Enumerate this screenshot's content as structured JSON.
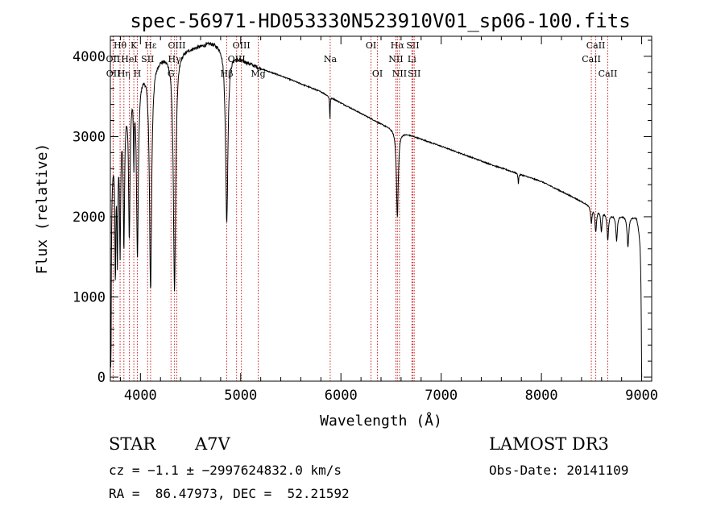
{
  "chart_data": {
    "type": "line",
    "title": "spec-56971-HD053330N523910V01_sp06-100.fits",
    "xlabel": "Wavelength (Å)",
    "ylabel": "Flux (relative)",
    "xlim": [
      3700,
      9100
    ],
    "ylim": [
      -50,
      4250
    ],
    "xticks": [
      4000,
      5000,
      6000,
      7000,
      8000,
      9000
    ],
    "yticks": [
      0,
      1000,
      2000,
      3000,
      4000
    ],
    "grid": false,
    "series": [
      {
        "name": "flux",
        "continuum": [
          [
            3700,
            2500
          ],
          [
            3750,
            3000
          ],
          [
            3800,
            3300
          ],
          [
            3900,
            3650
          ],
          [
            4000,
            3800
          ],
          [
            4100,
            3920
          ],
          [
            4200,
            4000
          ],
          [
            4400,
            4080
          ],
          [
            4600,
            4140
          ],
          [
            4700,
            4180
          ],
          [
            4800,
            4150
          ],
          [
            4900,
            4050
          ],
          [
            5000,
            3970
          ],
          [
            5200,
            3850
          ],
          [
            5400,
            3760
          ],
          [
            5600,
            3660
          ],
          [
            5800,
            3560
          ],
          [
            6000,
            3420
          ],
          [
            6200,
            3290
          ],
          [
            6400,
            3160
          ],
          [
            6600,
            3060
          ],
          [
            6800,
            2970
          ],
          [
            7000,
            2880
          ],
          [
            7500,
            2650
          ],
          [
            8000,
            2440
          ],
          [
            8500,
            2130
          ],
          [
            8700,
            2030
          ],
          [
            8950,
            2000
          ],
          [
            9000,
            1700
          ]
        ],
        "absorption": [
          {
            "center": 3705,
            "depth": 2450,
            "width": 5
          },
          {
            "center": 3750,
            "depth": 1600,
            "width": 6
          },
          {
            "center": 3770,
            "depth": 1500,
            "width": 6
          },
          {
            "center": 3797,
            "depth": 1600,
            "width": 7
          },
          {
            "center": 3835,
            "depth": 1700,
            "width": 8
          },
          {
            "center": 3889,
            "depth": 1800,
            "width": 9
          },
          {
            "center": 3934,
            "depth": 900,
            "width": 4
          },
          {
            "center": 3970,
            "depth": 2200,
            "width": 11
          },
          {
            "center": 4101,
            "depth": 2800,
            "width": 13
          },
          {
            "center": 4340,
            "depth": 2950,
            "width": 14
          },
          {
            "center": 4861,
            "depth": 2150,
            "width": 14
          },
          {
            "center": 5890,
            "depth": 300,
            "width": 3
          },
          {
            "center": 6563,
            "depth": 1080,
            "width": 11
          },
          {
            "center": 7770,
            "depth": 130,
            "width": 4
          },
          {
            "center": 8498,
            "depth": 200,
            "width": 8
          },
          {
            "center": 8542,
            "depth": 290,
            "width": 9
          },
          {
            "center": 8598,
            "depth": 250,
            "width": 8
          },
          {
            "center": 8662,
            "depth": 330,
            "width": 9
          },
          {
            "center": 8750,
            "depth": 320,
            "width": 9
          },
          {
            "center": 8863,
            "depth": 380,
            "width": 10
          },
          {
            "center": 9000,
            "depth": 1500,
            "width": 6
          }
        ]
      }
    ],
    "line_markers": [
      {
        "label": "Hθ",
        "wave": 3797,
        "row": 0
      },
      {
        "label": "OII",
        "wave": 3727,
        "row": 1
      },
      {
        "label": "OII",
        "wave": 3729,
        "row": 2
      },
      {
        "label": "Hη",
        "wave": 3835,
        "row": 2
      },
      {
        "label": "K",
        "wave": 3934,
        "row": 0
      },
      {
        "label": "HeI",
        "wave": 3889,
        "row": 1
      },
      {
        "label": "H",
        "wave": 3969,
        "row": 2
      },
      {
        "label": "Hε",
        "wave": 4101,
        "row": 0
      },
      {
        "label": "SII",
        "wave": 4072,
        "row": 1
      },
      {
        "label": "G",
        "wave": 4305,
        "row": 2
      },
      {
        "label": "OIII",
        "wave": 4363,
        "row": 0
      },
      {
        "label": "Hγ",
        "wave": 4340,
        "row": 1
      },
      {
        "label": "Hβ",
        "wave": 4861,
        "row": 2
      },
      {
        "label": "OIII",
        "wave": 5007,
        "row": 0
      },
      {
        "label": "OIII",
        "wave": 4959,
        "row": 1
      },
      {
        "label": "Mg",
        "wave": 5175,
        "row": 2
      },
      {
        "label": "Na",
        "wave": 5893,
        "row": 1
      },
      {
        "label": "OI",
        "wave": 6300,
        "row": 0
      },
      {
        "label": "OI",
        "wave": 6364,
        "row": 2
      },
      {
        "label": "Hα",
        "wave": 6563,
        "row": 0
      },
      {
        "label": "SII",
        "wave": 6717,
        "row": 0
      },
      {
        "label": "NII",
        "wave": 6548,
        "row": 1
      },
      {
        "label": "Li",
        "wave": 6708,
        "row": 1
      },
      {
        "label": "NII",
        "wave": 6584,
        "row": 2
      },
      {
        "label": "SII",
        "wave": 6731,
        "row": 2
      },
      {
        "label": "CaII",
        "wave": 8542,
        "row": 0
      },
      {
        "label": "CaII",
        "wave": 8498,
        "row": 1
      },
      {
        "label": "CaII",
        "wave": 8662,
        "row": 2
      }
    ]
  },
  "info": {
    "object_class": "STAR",
    "subclass": "A7V",
    "survey": "LAMOST DR3",
    "cz": "cz = −1.1 ± −2997624832.0 km/s",
    "obs_date": "Obs-Date: 20141109",
    "coords": "RA =  86.47973, DEC =  52.21592"
  },
  "colors": {
    "line_marker": "#cc2222",
    "spectrum": "#000000",
    "axes": "#000000"
  }
}
